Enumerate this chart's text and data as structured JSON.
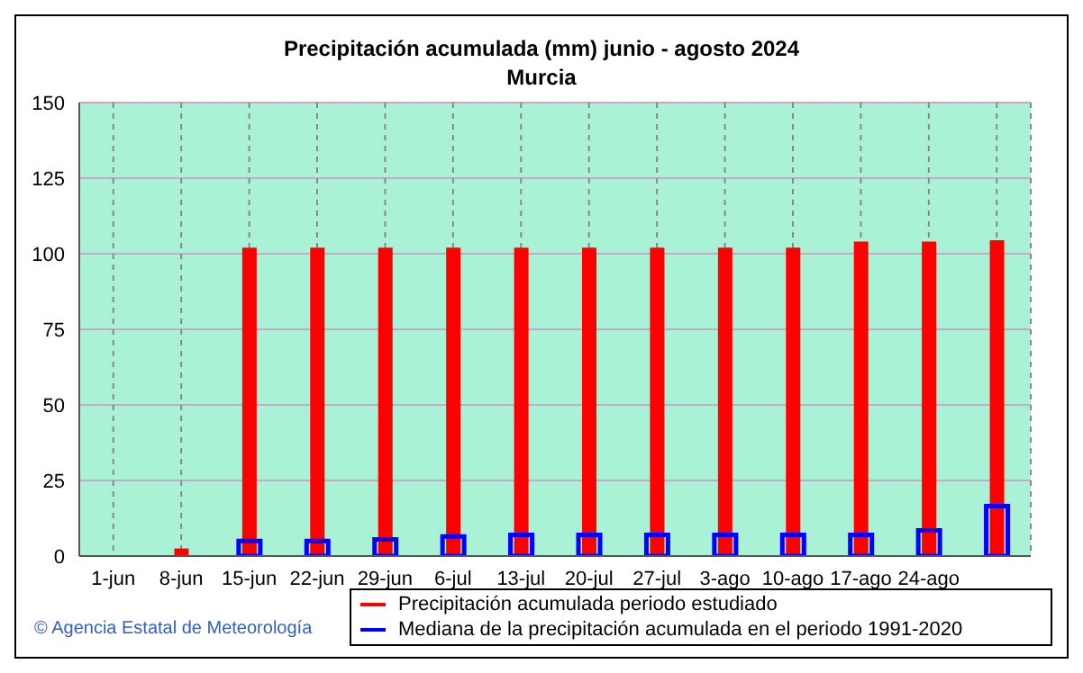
{
  "chart_data": {
    "type": "bar",
    "title": "Precipitación acumulada (mm) junio - agosto 2024",
    "subtitle": "Murcia",
    "categories": [
      "1-jun",
      "8-jun",
      "15-jun",
      "22-jun",
      "29-jun",
      "6-jul",
      "13-jul",
      "20-jul",
      "27-jul",
      "3-ago",
      "10-ago",
      "17-ago",
      "24-ago",
      null
    ],
    "series": [
      {
        "name": "Precipitación acumulada periodo estudiado",
        "color": "#ff0000",
        "values": [
          0,
          2.5,
          102,
          102,
          102,
          102,
          102,
          102,
          102,
          102,
          102,
          104,
          104,
          104.5
        ]
      },
      {
        "name": "Mediana de la precipitación acumulada en el periodo 1991-2020",
        "color": "#0000ff",
        "values": [
          0,
          0,
          5,
          5,
          5.5,
          6.5,
          7,
          7,
          7,
          7,
          7,
          7,
          8.5,
          16.5
        ]
      }
    ],
    "ylim": [
      0,
      150
    ],
    "yticks": [
      0,
      25,
      50,
      75,
      100,
      125,
      150
    ],
    "grid": true,
    "legend": "bottom",
    "annotations": [
      "© Agencia Estatal de Meteorología"
    ]
  }
}
